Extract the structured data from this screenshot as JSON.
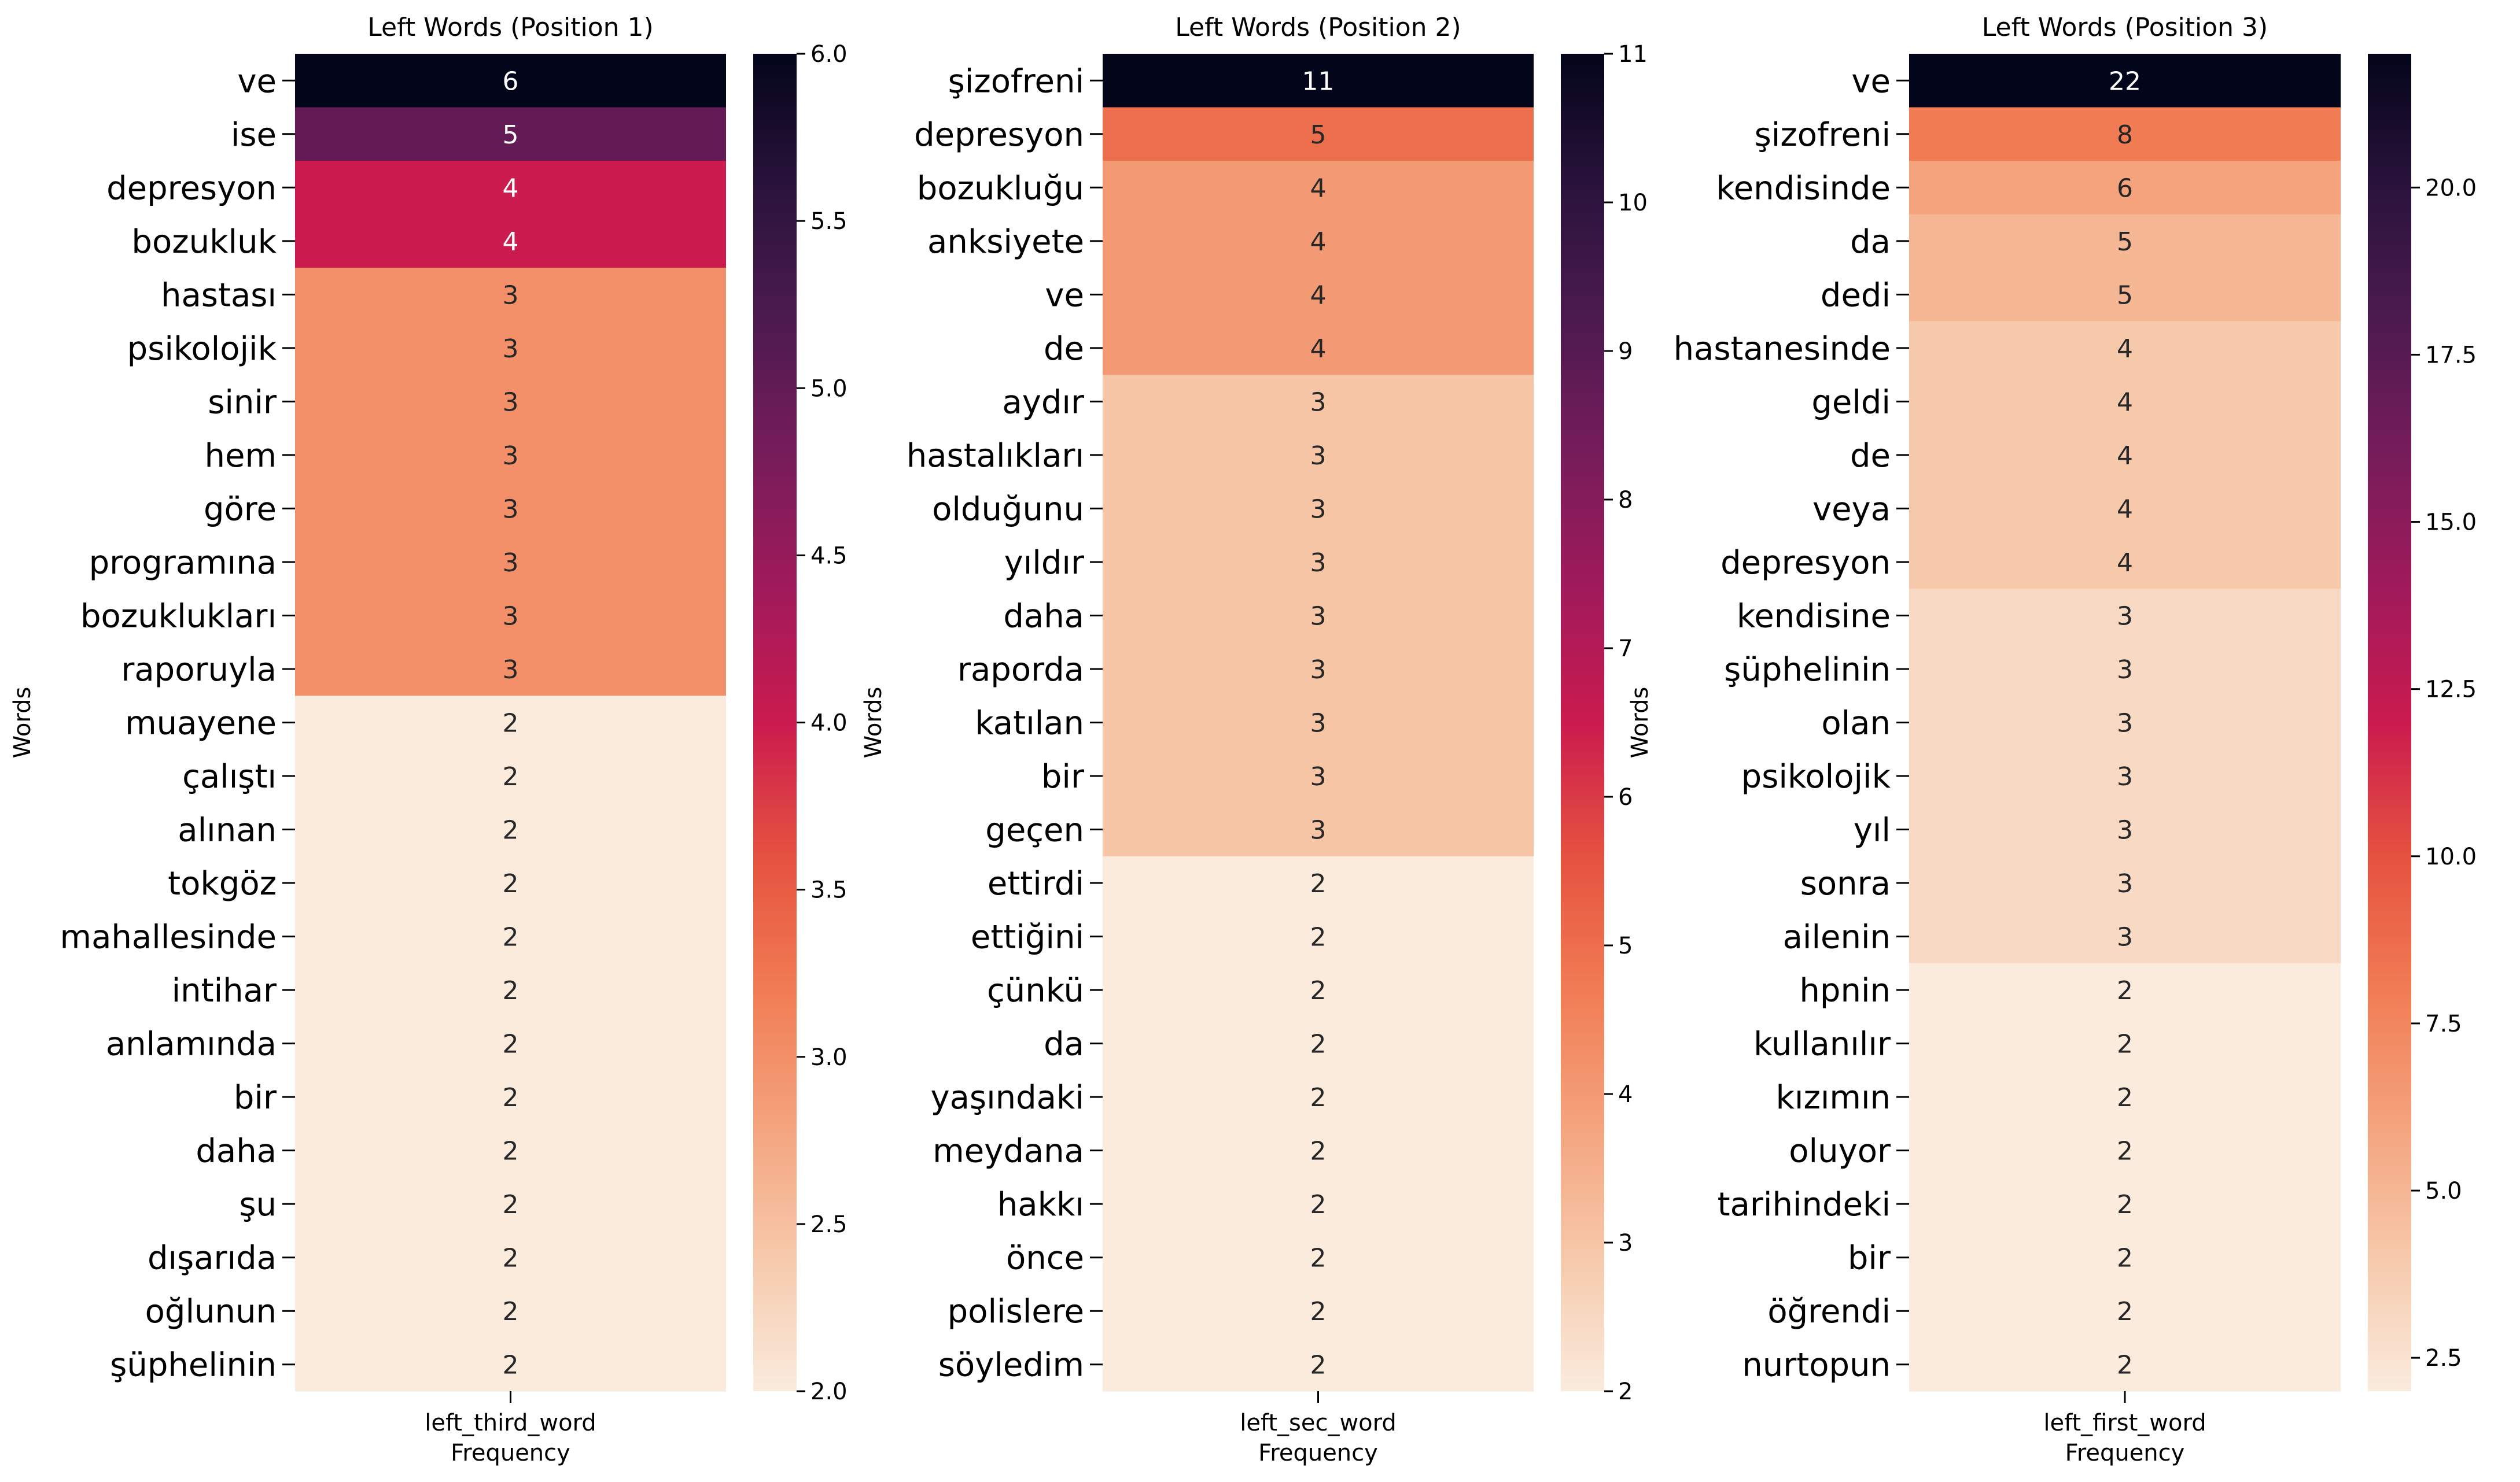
{
  "chart_data": [
    {
      "type": "heatmap",
      "title": "Left Words (Position 1)",
      "xlabel": "Frequency",
      "ylabel": "Words",
      "column": "left_third_word",
      "colorbar_label": "Words",
      "colorbar_range": [
        2.0,
        6.0
      ],
      "colorbar_ticks": [
        "6.0",
        "5.5",
        "5.0",
        "4.5",
        "4.0",
        "3.5",
        "3.0",
        "2.5",
        "2.0"
      ],
      "colorbar_tick_values": [
        6.0,
        5.5,
        5.0,
        4.5,
        4.0,
        3.5,
        3.0,
        2.5,
        2.0
      ],
      "categories": [
        "ve",
        "ise",
        "depresyon",
        "bozukluk",
        "hastası",
        "psikolojik",
        "sinir",
        "hem",
        "göre",
        "programına",
        "bozuklukları",
        "raporuyla",
        "muayene",
        "çalıştı",
        "alınan",
        "tokgöz",
        "mahallesinde",
        "intihar",
        "anlamında",
        "bir",
        "daha",
        "şu",
        "dışarıda",
        "oğlunun",
        "şüphelinin"
      ],
      "values": [
        6,
        5,
        4,
        4,
        3,
        3,
        3,
        3,
        3,
        3,
        3,
        3,
        2,
        2,
        2,
        2,
        2,
        2,
        2,
        2,
        2,
        2,
        2,
        2,
        2
      ],
      "colormap": "rocket_r"
    },
    {
      "type": "heatmap",
      "title": "Left Words (Position 2)",
      "xlabel": "Frequency",
      "ylabel": "Words",
      "column": "left_sec_word",
      "colorbar_label": "Words",
      "colorbar_range": [
        2,
        11
      ],
      "colorbar_ticks": [
        "11",
        "10",
        "9",
        "8",
        "7",
        "6",
        "5",
        "4",
        "3",
        "2"
      ],
      "colorbar_tick_values": [
        11,
        10,
        9,
        8,
        7,
        6,
        5,
        4,
        3,
        2
      ],
      "categories": [
        "şizofreni",
        "depresyon",
        "bozukluğu",
        "anksiyete",
        "ve",
        "de",
        "aydır",
        "hastalıkları",
        "olduğunu",
        "yıldır",
        "daha",
        "raporda",
        "katılan",
        "bir",
        "geçen",
        "ettirdi",
        "ettiğini",
        "çünkü",
        "da",
        "yaşındaki",
        "meydana",
        "hakkı",
        "önce",
        "polislere",
        "söyledim"
      ],
      "values": [
        11,
        5,
        4,
        4,
        4,
        4,
        3,
        3,
        3,
        3,
        3,
        3,
        3,
        3,
        3,
        2,
        2,
        2,
        2,
        2,
        2,
        2,
        2,
        2,
        2
      ],
      "colormap": "rocket_r"
    },
    {
      "type": "heatmap",
      "title": "Left Words (Position 3)",
      "xlabel": "Frequency",
      "ylabel": "",
      "column": "left_first_word",
      "colorbar_label": "",
      "colorbar_range": [
        2,
        22
      ],
      "colorbar_ticks": [
        "20.0",
        "17.5",
        "15.0",
        "12.5",
        "10.0",
        "7.5",
        "5.0",
        "2.5"
      ],
      "colorbar_tick_values": [
        20.0,
        17.5,
        15.0,
        12.5,
        10.0,
        7.5,
        5.0,
        2.5
      ],
      "categories": [
        "ve",
        "şizofreni",
        "kendisinde",
        "da",
        "dedi",
        "hastanesinde",
        "geldi",
        "de",
        "veya",
        "depresyon",
        "kendisine",
        "şüphelinin",
        "olan",
        "psikolojik",
        "yıl",
        "sonra",
        "ailenin",
        "hpnin",
        "kullanılır",
        "kızımın",
        "oluyor",
        "tarihindeki",
        "bir",
        "öğrendi",
        "nurtopun"
      ],
      "values": [
        22,
        8,
        6,
        5,
        5,
        4,
        4,
        4,
        4,
        4,
        3,
        3,
        3,
        3,
        3,
        3,
        3,
        2,
        2,
        2,
        2,
        2,
        2,
        2,
        2
      ],
      "colormap": "rocket_r"
    }
  ]
}
